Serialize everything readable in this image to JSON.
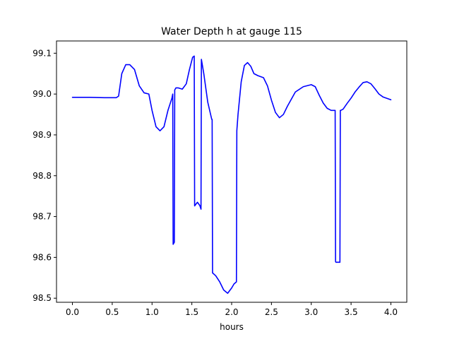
{
  "chart_data": {
    "type": "line",
    "title": "Water Depth h at gauge 115",
    "xlabel": "hours",
    "ylabel": "",
    "xlim": [
      -0.2,
      4.2
    ],
    "ylim": [
      98.49,
      99.13
    ],
    "x_ticks": [
      0.0,
      0.5,
      1.0,
      1.5,
      2.0,
      2.5,
      3.0,
      3.5,
      4.0
    ],
    "x_tick_labels": [
      "0.0",
      "0.5",
      "1.0",
      "1.5",
      "2.0",
      "2.5",
      "3.0",
      "3.5",
      "4.0"
    ],
    "y_ticks": [
      98.5,
      98.6,
      98.7,
      98.8,
      98.9,
      99.0,
      99.1
    ],
    "y_tick_labels": [
      "98.5",
      "98.6",
      "98.7",
      "98.8",
      "98.9",
      "99.0",
      "99.1"
    ],
    "grid": false,
    "legend": "none",
    "series": [
      {
        "color": "#0000ff",
        "x": [
          0.0,
          0.2,
          0.4,
          0.55,
          0.58,
          0.62,
          0.67,
          0.72,
          0.78,
          0.84,
          0.9,
          0.96,
          1.0,
          1.05,
          1.1,
          1.15,
          1.2,
          1.25,
          1.26,
          1.265,
          1.28,
          1.285,
          1.3,
          1.33,
          1.38,
          1.43,
          1.47,
          1.51,
          1.53,
          1.535,
          1.55,
          1.57,
          1.6,
          1.615,
          1.62,
          1.65,
          1.7,
          1.75,
          1.755,
          1.76,
          1.8,
          1.85,
          1.9,
          1.95,
          2.0,
          2.03,
          2.06,
          2.065,
          2.08,
          2.12,
          2.16,
          2.2,
          2.24,
          2.28,
          2.33,
          2.4,
          2.45,
          2.5,
          2.55,
          2.6,
          2.65,
          2.7,
          2.8,
          2.9,
          3.0,
          3.05,
          3.1,
          3.15,
          3.2,
          3.25,
          3.3,
          3.305,
          3.31,
          3.36,
          3.365,
          3.37,
          3.4,
          3.45,
          3.5,
          3.55,
          3.6,
          3.65,
          3.7,
          3.75,
          3.8,
          3.85,
          3.9,
          4.0
        ],
        "y": [
          98.992,
          98.992,
          98.991,
          98.991,
          98.995,
          99.05,
          99.072,
          99.072,
          99.06,
          99.02,
          99.003,
          99.0,
          98.96,
          98.92,
          98.91,
          98.92,
          98.96,
          98.99,
          99.0,
          98.632,
          98.637,
          99.01,
          99.015,
          99.015,
          99.012,
          99.025,
          99.06,
          99.09,
          99.093,
          98.726,
          98.73,
          98.735,
          98.727,
          98.718,
          99.085,
          99.05,
          98.98,
          98.938,
          98.938,
          98.562,
          98.555,
          98.54,
          98.52,
          98.512,
          98.525,
          98.535,
          98.54,
          98.91,
          98.95,
          99.03,
          99.07,
          99.077,
          99.068,
          99.05,
          99.045,
          99.04,
          99.02,
          98.985,
          98.955,
          98.942,
          98.95,
          98.97,
          99.005,
          99.018,
          99.023,
          99.018,
          98.997,
          98.978,
          98.965,
          98.96,
          98.96,
          98.59,
          98.588,
          98.588,
          98.96,
          98.96,
          98.963,
          98.977,
          98.99,
          99.005,
          99.017,
          99.028,
          99.03,
          99.025,
          99.013,
          99.0,
          98.993,
          98.986
        ]
      }
    ]
  }
}
